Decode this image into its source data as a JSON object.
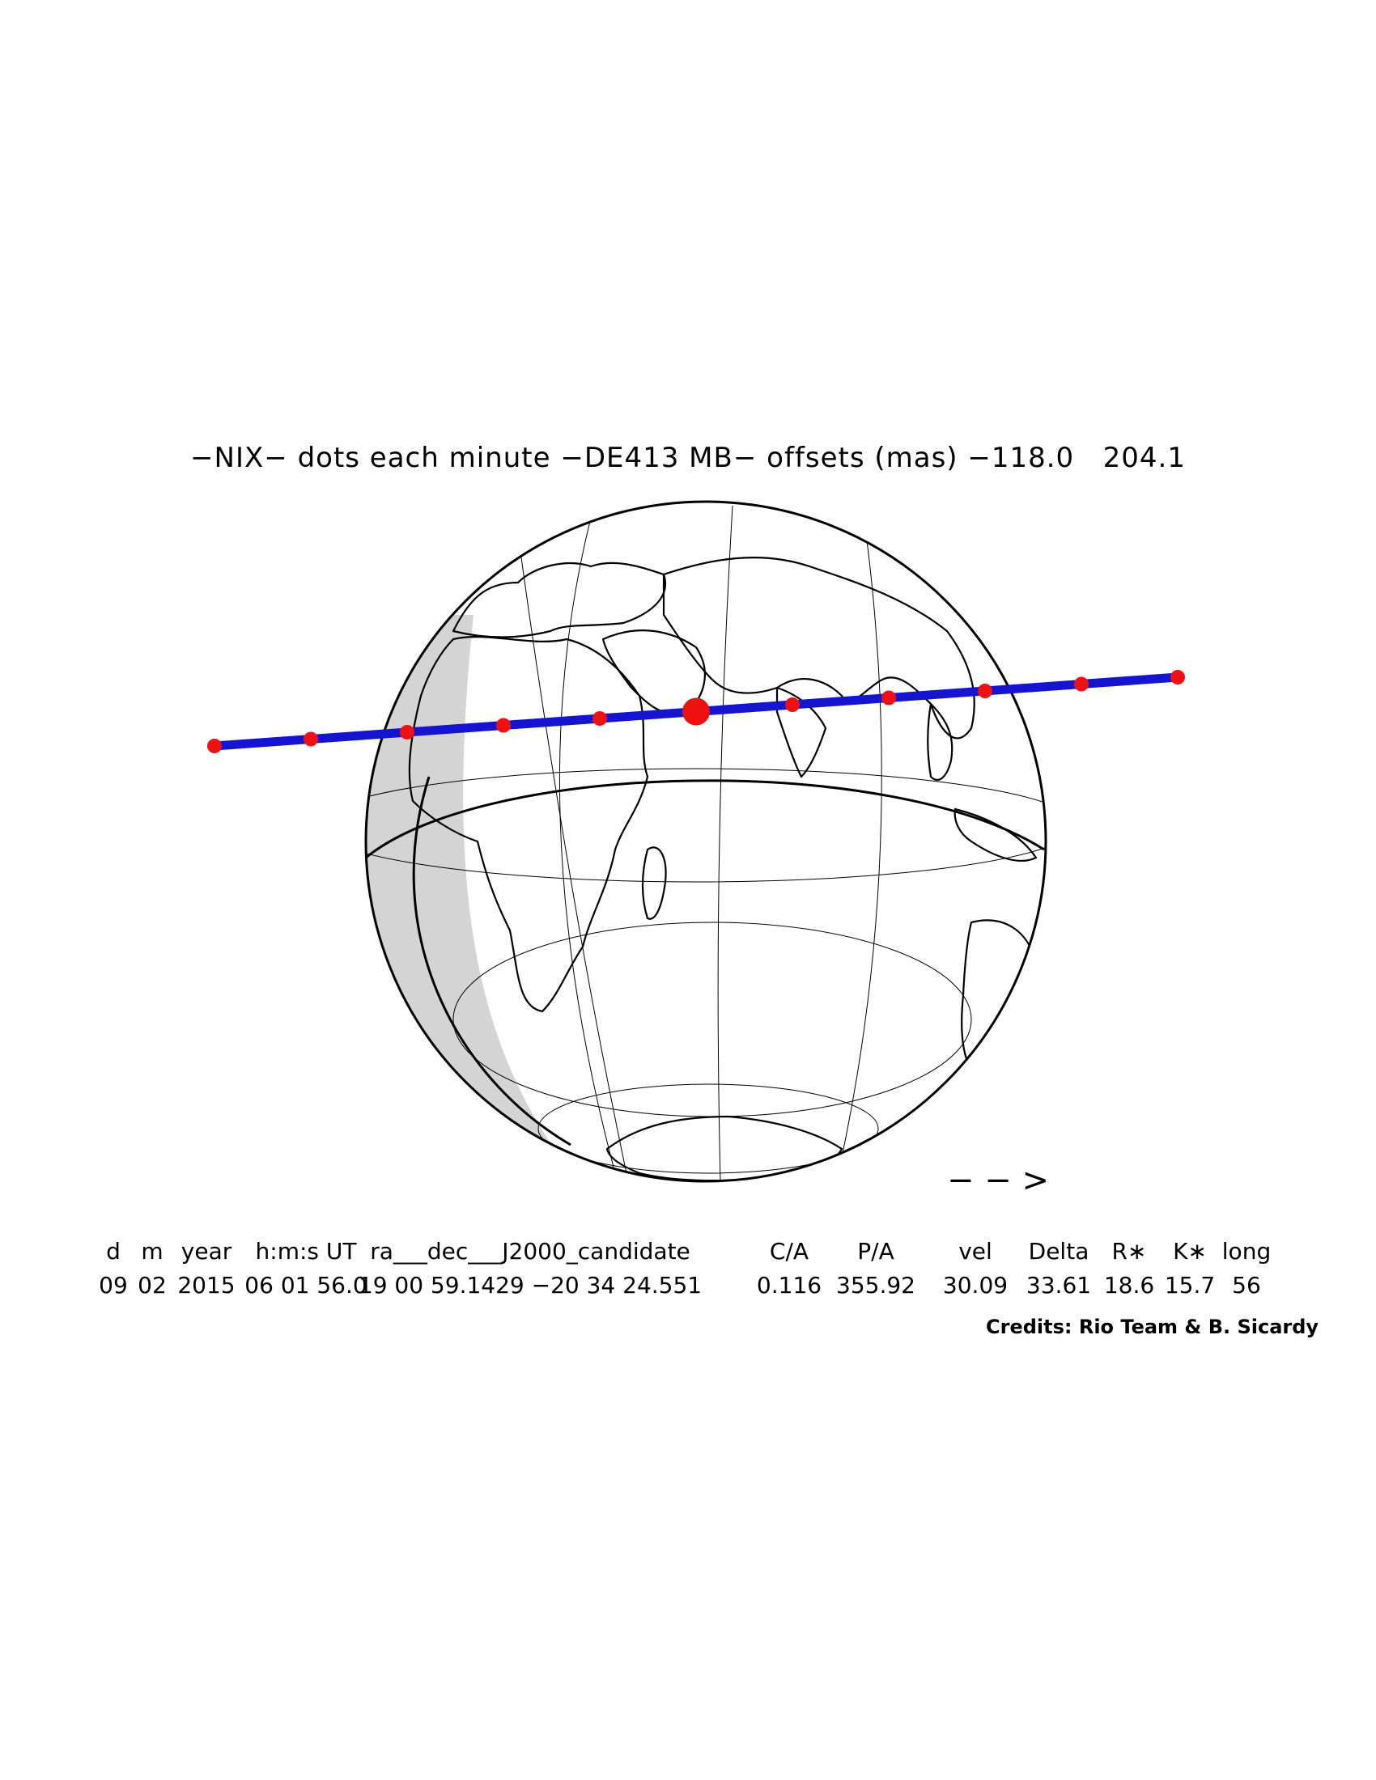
{
  "title": "−NIX− dots each minute −DE413 MB− offsets (mas) −118.0   204.1",
  "direction_arrow": "− − >",
  "table": {
    "headers": [
      "d",
      "m",
      "year",
      "h:m:s UT",
      "ra___dec___J2000_candidate",
      "C/A",
      "P/A",
      "vel",
      "Delta",
      "R∗",
      "K∗",
      "long"
    ],
    "values": [
      "09",
      "02",
      "2015",
      "06 01 56.0",
      "19 00 59.1429 −20 34 24.551",
      "0.116",
      "355.92",
      "30.09",
      "33.61",
      "18.6",
      "15.7",
      "56"
    ]
  },
  "credits": "Credits: Rio Team & B. Sicardy",
  "colors": {
    "track": "#1515d0",
    "dots": "#ee1111",
    "night_shade": "#d4d4d4",
    "twilight_shade": "#a9a9a9",
    "lines": "#000000"
  },
  "track": {
    "dot_count": 11,
    "center_dot_index": 5
  }
}
